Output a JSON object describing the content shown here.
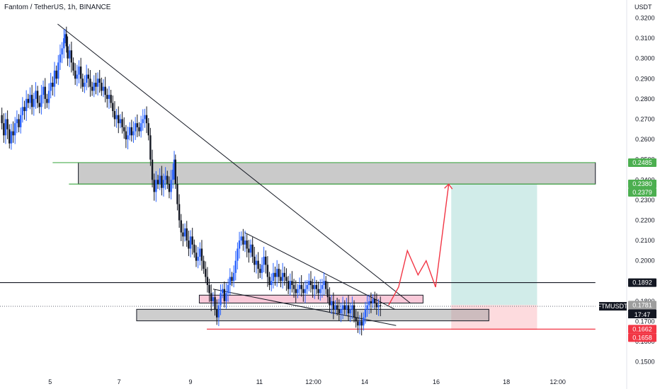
{
  "header": {
    "title": "Fantom / TetherUS, 1h, BINANCE",
    "currency": "USDT"
  },
  "colors": {
    "up_candle": "#2962ff",
    "down_candle": "#131722",
    "support_line": "#4caf50",
    "red_line": "#f23645",
    "pink_zone": "#f8bbd0",
    "grey_zone": "#9e9e9e",
    "target_zone": "#b2dfdb",
    "stop_zone": "#fcc8cd",
    "projection": "#f23645"
  },
  "chart_data": {
    "type": "candlestick",
    "ylim": [
      0.145,
      0.324
    ],
    "xlim": [
      0,
      1000
    ],
    "y_ticks": [
      "0.3200",
      "0.3100",
      "0.3000",
      "0.2900",
      "0.2800",
      "0.2700",
      "0.2600",
      "0.2500",
      "0.2400",
      "0.2300",
      "0.2200",
      "0.2100",
      "0.2000",
      "0.1900",
      "0.1800",
      "0.1700",
      "0.1600",
      "0.1500"
    ],
    "y_tick_values": [
      0.32,
      0.31,
      0.3,
      0.29,
      0.28,
      0.27,
      0.26,
      0.25,
      0.24,
      0.23,
      0.22,
      0.21,
      0.2,
      0.19,
      0.18,
      0.17,
      0.16,
      0.15
    ],
    "x_ticks": [
      {
        "label": "5",
        "x": 80
      },
      {
        "label": "7",
        "x": 190
      },
      {
        "label": "9",
        "x": 304
      },
      {
        "label": "11",
        "x": 414
      },
      {
        "label": "12:00",
        "x": 500
      },
      {
        "label": "14",
        "x": 582
      },
      {
        "label": "16",
        "x": 696
      },
      {
        "label": "18",
        "x": 808
      },
      {
        "label": "12:00",
        "x": 890
      }
    ],
    "price_tags": [
      {
        "label": "0.2485",
        "value": 0.2485,
        "color": "#4caf50",
        "text": "#ffffff"
      },
      {
        "label": "0.2380",
        "value": 0.238,
        "color": "#4caf50",
        "text": "#ffffff"
      },
      {
        "label": "0.2379",
        "value": 0.2379,
        "color": "#4caf50",
        "text": "#ffffff"
      },
      {
        "label": "0.1892",
        "value": 0.1892,
        "color": "#131722",
        "text": "#ffffff"
      },
      {
        "label": "0.1781",
        "value": 0.1781,
        "color": "#9e9e9e",
        "text": "#ffffff"
      },
      {
        "label": "0.1775",
        "value": 0.1775,
        "color": "#131722",
        "text": "#ffffff"
      },
      {
        "label": "0.1662",
        "value": 0.1662,
        "color": "#f23645",
        "text": "#ffffff"
      },
      {
        "label": "0.1658",
        "value": 0.1658,
        "color": "#f23645",
        "text": "#ffffff"
      }
    ],
    "symbol_tag": {
      "symbol": "FTMUSDT",
      "countdown": "17:47",
      "value": 0.1775
    },
    "close_path": [
      [
        0,
        0.272
      ],
      [
        3,
        0.268
      ],
      [
        6,
        0.262
      ],
      [
        9,
        0.27
      ],
      [
        12,
        0.265
      ],
      [
        15,
        0.258
      ],
      [
        18,
        0.264
      ],
      [
        21,
        0.262
      ],
      [
        24,
        0.268
      ],
      [
        27,
        0.27
      ],
      [
        30,
        0.266
      ],
      [
        33,
        0.272
      ],
      [
        36,
        0.276
      ],
      [
        39,
        0.274
      ],
      [
        42,
        0.28
      ],
      [
        45,
        0.278
      ],
      [
        48,
        0.282
      ],
      [
        51,
        0.276
      ],
      [
        54,
        0.28
      ],
      [
        57,
        0.284
      ],
      [
        60,
        0.278
      ],
      [
        63,
        0.276
      ],
      [
        66,
        0.282
      ],
      [
        69,
        0.286
      ],
      [
        72,
        0.28
      ],
      [
        75,
        0.278
      ],
      [
        78,
        0.284
      ],
      [
        81,
        0.288
      ],
      [
        84,
        0.286
      ],
      [
        87,
        0.294
      ],
      [
        90,
        0.29
      ],
      [
        93,
        0.298
      ],
      [
        96,
        0.302
      ],
      [
        99,
        0.305
      ],
      [
        102,
        0.31
      ],
      [
        104,
        0.312
      ],
      [
        106,
        0.306
      ],
      [
        108,
        0.3
      ],
      [
        111,
        0.304
      ],
      [
        114,
        0.298
      ],
      [
        117,
        0.294
      ],
      [
        120,
        0.29
      ],
      [
        123,
        0.292
      ],
      [
        126,
        0.296
      ],
      [
        129,
        0.29
      ],
      [
        132,
        0.286
      ],
      [
        135,
        0.288
      ],
      [
        138,
        0.292
      ],
      [
        141,
        0.29
      ],
      [
        144,
        0.286
      ],
      [
        147,
        0.284
      ],
      [
        150,
        0.288
      ],
      [
        153,
        0.286
      ],
      [
        156,
        0.29
      ],
      [
        159,
        0.288
      ],
      [
        162,
        0.284
      ],
      [
        165,
        0.286
      ],
      [
        168,
        0.282
      ],
      [
        171,
        0.28
      ],
      [
        174,
        0.282
      ],
      [
        177,
        0.278
      ],
      [
        180,
        0.274
      ],
      [
        183,
        0.27
      ],
      [
        186,
        0.272
      ],
      [
        189,
        0.268
      ],
      [
        192,
        0.27
      ],
      [
        195,
        0.266
      ],
      [
        198,
        0.264
      ],
      [
        201,
        0.26
      ],
      [
        204,
        0.262
      ],
      [
        207,
        0.266
      ],
      [
        210,
        0.262
      ],
      [
        213,
        0.264
      ],
      [
        216,
        0.268
      ],
      [
        219,
        0.266
      ],
      [
        222,
        0.264
      ],
      [
        225,
        0.268
      ],
      [
        228,
        0.27
      ],
      [
        231,
        0.272
      ],
      [
        234,
        0.268
      ],
      [
        237,
        0.262
      ],
      [
        240,
        0.25
      ],
      [
        243,
        0.24
      ],
      [
        246,
        0.234
      ],
      [
        249,
        0.24
      ],
      [
        252,
        0.238
      ],
      [
        255,
        0.242
      ],
      [
        258,
        0.236
      ],
      [
        261,
        0.24
      ],
      [
        264,
        0.242
      ],
      [
        267,
        0.238
      ],
      [
        270,
        0.234
      ],
      [
        273,
        0.24
      ],
      [
        276,
        0.245
      ],
      [
        278,
        0.25
      ],
      [
        280,
        0.238
      ],
      [
        283,
        0.228
      ],
      [
        286,
        0.22
      ],
      [
        289,
        0.214
      ],
      [
        292,
        0.212
      ],
      [
        295,
        0.216
      ],
      [
        298,
        0.21
      ],
      [
        301,
        0.206
      ],
      [
        304,
        0.212
      ],
      [
        307,
        0.208
      ],
      [
        310,
        0.204
      ],
      [
        313,
        0.2
      ],
      [
        316,
        0.202
      ],
      [
        319,
        0.206
      ],
      [
        322,
        0.2
      ],
      [
        325,
        0.196
      ],
      [
        328,
        0.192
      ],
      [
        331,
        0.188
      ],
      [
        334,
        0.184
      ],
      [
        337,
        0.18
      ],
      [
        340,
        0.182
      ],
      [
        343,
        0.176
      ],
      [
        346,
        0.172
      ],
      [
        349,
        0.178
      ],
      [
        352,
        0.184
      ],
      [
        355,
        0.186
      ],
      [
        358,
        0.18
      ],
      [
        361,
        0.184
      ],
      [
        364,
        0.188
      ],
      [
        367,
        0.192
      ],
      [
        370,
        0.19
      ],
      [
        373,
        0.194
      ],
      [
        376,
        0.2
      ],
      [
        379,
        0.206
      ],
      [
        382,
        0.21
      ],
      [
        385,
        0.212
      ],
      [
        388,
        0.208
      ],
      [
        391,
        0.21
      ],
      [
        394,
        0.206
      ],
      [
        397,
        0.204
      ],
      [
        400,
        0.208
      ],
      [
        403,
        0.202
      ],
      [
        406,
        0.198
      ],
      [
        409,
        0.2
      ],
      [
        412,
        0.196
      ],
      [
        415,
        0.194
      ],
      [
        418,
        0.198
      ],
      [
        421,
        0.202
      ],
      [
        424,
        0.198
      ],
      [
        427,
        0.192
      ],
      [
        430,
        0.188
      ],
      [
        433,
        0.19
      ],
      [
        436,
        0.194
      ],
      [
        439,
        0.192
      ],
      [
        442,
        0.196
      ],
      [
        445,
        0.192
      ],
      [
        448,
        0.19
      ],
      [
        451,
        0.194
      ],
      [
        454,
        0.192
      ],
      [
        457,
        0.19
      ],
      [
        460,
        0.186
      ],
      [
        463,
        0.19
      ],
      [
        466,
        0.188
      ],
      [
        469,
        0.186
      ],
      [
        472,
        0.184
      ],
      [
        475,
        0.186
      ],
      [
        478,
        0.188
      ],
      [
        481,
        0.186
      ],
      [
        484,
        0.184
      ],
      [
        487,
        0.186
      ],
      [
        490,
        0.188
      ],
      [
        493,
        0.19
      ],
      [
        496,
        0.188
      ],
      [
        499,
        0.186
      ],
      [
        502,
        0.188
      ],
      [
        505,
        0.186
      ],
      [
        508,
        0.184
      ],
      [
        511,
        0.186
      ],
      [
        514,
        0.188
      ],
      [
        517,
        0.19
      ],
      [
        520,
        0.186
      ],
      [
        523,
        0.182
      ],
      [
        526,
        0.178
      ],
      [
        529,
        0.18
      ],
      [
        532,
        0.176
      ],
      [
        535,
        0.178
      ],
      [
        538,
        0.176
      ],
      [
        541,
        0.174
      ],
      [
        544,
        0.176
      ],
      [
        547,
        0.178
      ],
      [
        550,
        0.176
      ],
      [
        553,
        0.178
      ],
      [
        556,
        0.174
      ],
      [
        559,
        0.176
      ],
      [
        562,
        0.178
      ],
      [
        565,
        0.172
      ],
      [
        568,
        0.17
      ],
      [
        571,
        0.168
      ],
      [
        574,
        0.17
      ],
      [
        577,
        0.168
      ],
      [
        580,
        0.172
      ],
      [
        583,
        0.176
      ],
      [
        586,
        0.178
      ],
      [
        589,
        0.18
      ],
      [
        592,
        0.179
      ],
      [
        595,
        0.181
      ],
      [
        598,
        0.179
      ],
      [
        601,
        0.177
      ],
      [
        604,
        0.178
      ],
      [
        607,
        0.1775
      ]
    ],
    "annotations": {
      "upper_zone": {
        "x1": 125,
        "x2": 950,
        "y1": 0.2379,
        "y2": 0.2485
      },
      "pink_zone": {
        "x1": 318,
        "x2": 675,
        "y1": 0.1791,
        "y2": 0.183
      },
      "lower_zone": {
        "x1": 218,
        "x2": 780,
        "y1": 0.1703,
        "y2": 0.176
      },
      "target_box": {
        "x1": 720,
        "x2": 857,
        "y1": 0.1781,
        "y2": 0.2379
      },
      "stop_box": {
        "x1": 720,
        "x2": 857,
        "y1": 0.1658,
        "y2": 0.1781
      },
      "hline_support_top": {
        "x1": 84,
        "x2": 950,
        "value": 0.2485
      },
      "hline_support_bot": {
        "x1": 110,
        "x2": 950,
        "value": 0.2379
      },
      "hline_black": {
        "x1": 0,
        "x2": 950,
        "value": 0.1892
      },
      "hline_red": {
        "x1": 330,
        "x2": 950,
        "value": 0.1662
      },
      "hline_dotted": {
        "x1": 0,
        "x2": 950,
        "value": 0.1775
      },
      "trend_main": [
        [
          92,
          0.317
        ],
        [
          655,
          0.179
        ]
      ],
      "trend_wedge_top": [
        [
          390,
          0.214
        ],
        [
          630,
          0.176
        ]
      ],
      "trend_wedge_bottom": [
        [
          340,
          0.186
        ],
        [
          632,
          0.168
        ]
      ],
      "projection": [
        [
          620,
          0.178
        ],
        [
          636,
          0.187
        ],
        [
          650,
          0.205
        ],
        [
          667,
          0.193
        ],
        [
          680,
          0.2
        ],
        [
          695,
          0.187
        ],
        [
          716,
          0.2379
        ]
      ]
    }
  }
}
